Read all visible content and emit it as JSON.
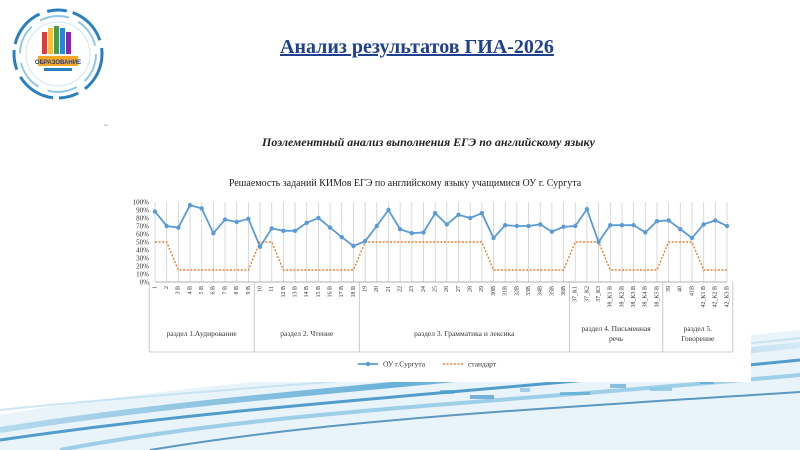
{
  "slide": {
    "title": "Анализ результатов ГИА-2026",
    "doc_heading": "Поэлементный анализ выполнения ЕГЭ по английскому языку",
    "logo_text": "ОБРАЗОВАНИЕ"
  },
  "colors": {
    "series": "#5b9bd5",
    "standard": "#ed7d31",
    "title": "#1f3f8f"
  },
  "chart_data": {
    "type": "line",
    "title": "Решаемость заданий КИМов ЕГЭ по английскому языку учащимися ОУ г. Сургута",
    "ylim": [
      0,
      100
    ],
    "yticks": [
      "0%",
      "10%",
      "20%",
      "30%",
      "40%",
      "50%",
      "60%",
      "70%",
      "80%",
      "90%",
      "100%"
    ],
    "categories": [
      "1",
      "2",
      "3 В",
      "4 В",
      "5 В",
      "6 В",
      "7 В",
      "8 В",
      "9 В",
      "10",
      "11",
      "12 В",
      "13 В",
      "14 В",
      "15 В",
      "16 В",
      "17 В",
      "18 В",
      "19",
      "20",
      "21",
      "22",
      "23",
      "24",
      "25",
      "26",
      "27",
      "28",
      "29",
      "30В",
      "31В",
      "32В",
      "33В",
      "34В",
      "35В",
      "36В",
      "37_К1",
      "37_К2",
      "37_К3",
      "38_К1 В",
      "38_К2 В",
      "38_К3 В",
      "38_К4 В",
      "38_К5 В",
      "39",
      "40",
      "41В",
      "42_К1 В",
      "42_К2 В",
      "42_К3 В"
    ],
    "series": [
      {
        "name": "ОУ г.Сургута",
        "values": [
          88,
          70,
          68,
          96,
          92,
          61,
          78,
          75,
          79,
          44,
          67,
          64,
          64,
          74,
          80,
          68,
          56,
          45,
          51,
          70,
          90,
          66,
          61,
          62,
          86,
          72,
          84,
          80,
          86,
          55,
          71,
          70,
          70,
          72,
          63,
          69,
          70,
          91,
          50,
          71,
          71,
          71,
          62,
          76,
          77,
          66,
          55,
          72,
          77,
          70
        ]
      },
      {
        "name": "стандарт",
        "values": [
          50,
          50,
          15,
          15,
          15,
          15,
          15,
          15,
          15,
          50,
          50,
          15,
          15,
          15,
          15,
          15,
          15,
          15,
          50,
          50,
          50,
          50,
          50,
          50,
          50,
          50,
          50,
          50,
          50,
          15,
          15,
          15,
          15,
          15,
          15,
          15,
          50,
          50,
          50,
          15,
          15,
          15,
          15,
          15,
          50,
          50,
          50,
          15,
          15,
          15
        ]
      }
    ],
    "sections": [
      {
        "label": "раздел 1.Аудирование",
        "start": 0,
        "end": 8
      },
      {
        "label": "раздел 2. Чтение",
        "start": 9,
        "end": 17
      },
      {
        "label": "раздел 3. Грамматика и лексика",
        "start": 18,
        "end": 35
      },
      {
        "label": "раздел 4. Письменная речь",
        "start": 36,
        "end": 43
      },
      {
        "label": "раздел 5. Говорение",
        "start": 44,
        "end": 49
      }
    ],
    "legend": "bottom",
    "grid": "vertical"
  }
}
